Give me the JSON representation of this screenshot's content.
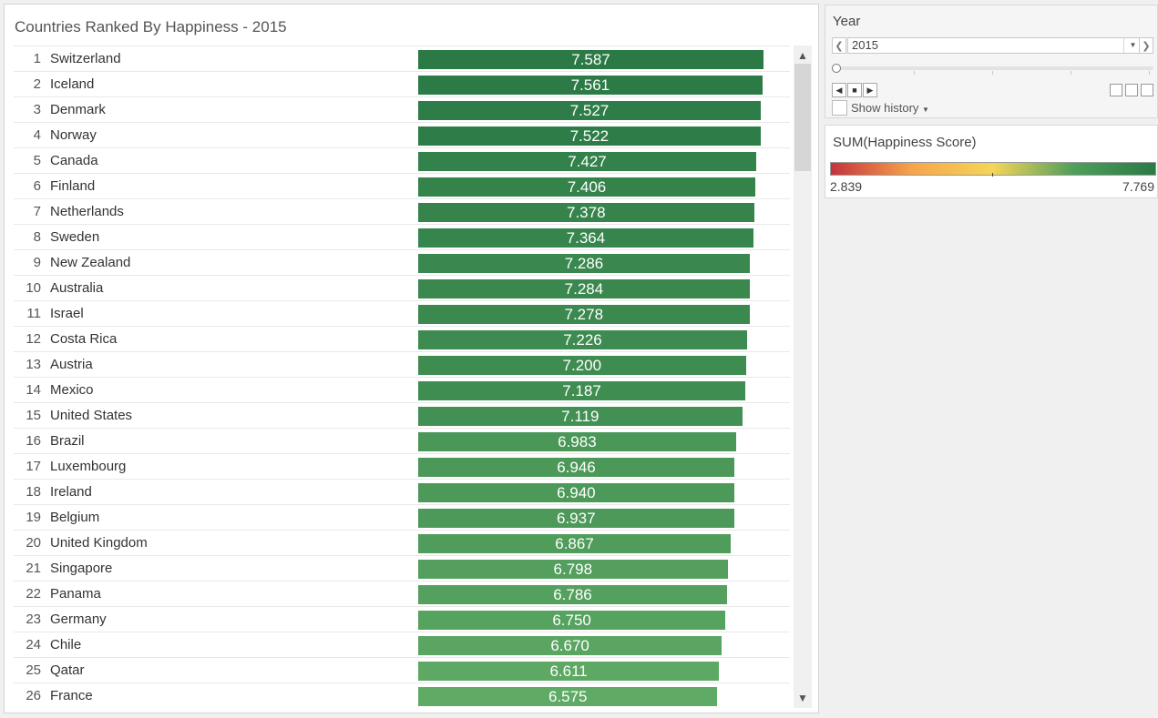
{
  "chart_data": {
    "type": "bar",
    "title": "Countries Ranked By Happiness - 2015",
    "ranks": [
      "1",
      "2",
      "3",
      "4",
      "5",
      "6",
      "7",
      "8",
      "9",
      "10",
      "11",
      "12",
      "13",
      "14",
      "15",
      "16",
      "17",
      "18",
      "19",
      "20",
      "21",
      "22",
      "23",
      "24",
      "25",
      "26"
    ],
    "categories": [
      "Switzerland",
      "Iceland",
      "Denmark",
      "Norway",
      "Canada",
      "Finland",
      "Netherlands",
      "Sweden",
      "New Zealand",
      "Australia",
      "Israel",
      "Costa Rica",
      "Austria",
      "Mexico",
      "United States",
      "Brazil",
      "Luxembourg",
      "Ireland",
      "Belgium",
      "United Kingdom",
      "Singapore",
      "Panama",
      "Germany",
      "Chile",
      "Qatar",
      "France"
    ],
    "values": [
      7.587,
      7.561,
      7.527,
      7.522,
      7.427,
      7.406,
      7.378,
      7.364,
      7.286,
      7.284,
      7.278,
      7.226,
      7.2,
      7.187,
      7.119,
      6.983,
      6.946,
      6.94,
      6.937,
      6.867,
      6.798,
      6.786,
      6.75,
      6.67,
      6.611,
      6.575
    ],
    "value_labels": [
      "7.587",
      "7.561",
      "7.527",
      "7.522",
      "7.427",
      "7.406",
      "7.378",
      "7.364",
      "7.286",
      "7.284",
      "7.278",
      "7.226",
      "7.200",
      "7.187",
      "7.119",
      "6.983",
      "6.946",
      "6.940",
      "6.937",
      "6.867",
      "6.798",
      "6.786",
      "6.750",
      "6.670",
      "6.611",
      "6.575"
    ],
    "xlim": [
      0,
      7.587
    ]
  },
  "filter": {
    "title": "Year",
    "selected": "2015",
    "show_history_label": "Show history"
  },
  "legend": {
    "title": "SUM(Happiness Score)",
    "min_label": "2.839",
    "max_label": "7.769",
    "min": 2.839,
    "max": 7.769,
    "colors": [
      "#c4323f",
      "#f6a54a",
      "#f5d55a",
      "#4e9e5c",
      "#2b7a46"
    ]
  },
  "icons": {
    "prev": "chevron-left-icon",
    "next": "chevron-right-icon",
    "dropdown": "caret-down-icon",
    "scroll_up": "caret-up-icon",
    "scroll_down": "caret-down-icon"
  }
}
